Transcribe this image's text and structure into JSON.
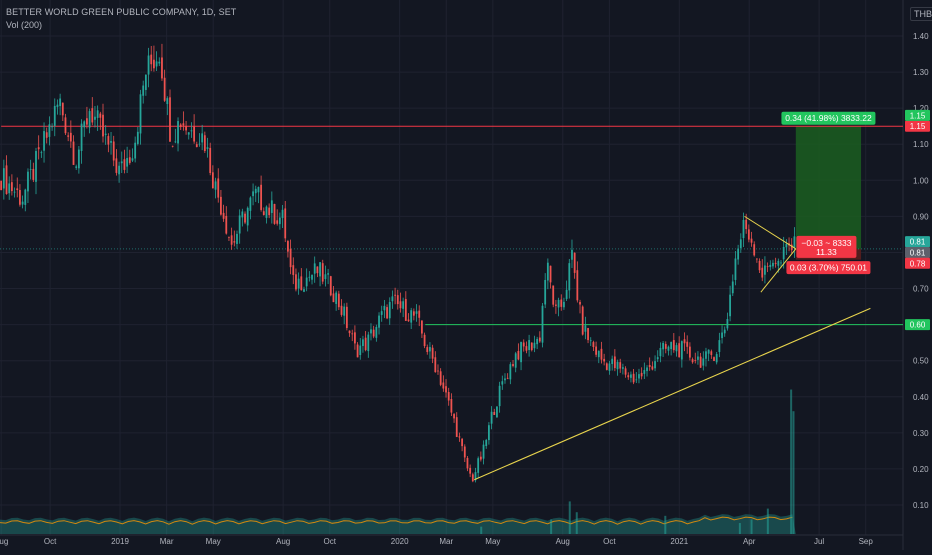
{
  "header": {
    "symbol_title": "BETTER WORLD GREEN PUBLIC COMPANY, 1D, SET",
    "volume_label": "Vol (200)",
    "currency": "THB"
  },
  "colors": {
    "background": "#131722",
    "grid": "#1f2230",
    "up": "#26a69a",
    "down": "#ef5350",
    "resistance": "#f23645",
    "support": "#22c55e",
    "trendline": "#e8d44d",
    "target_zone": "#1b5e20",
    "stop_zone": "#5a1e1e",
    "text": "#b2b5be"
  },
  "chart_data": {
    "type": "candlestick",
    "title": "BETTER WORLD GREEN PUBLIC COMPANY, 1D, SET",
    "ylim": [
      0.04,
      1.45
    ],
    "y_ticks": [
      "1.40",
      "1.30",
      "1.20",
      "1.10",
      "1.00",
      "0.90",
      "0.80",
      "0.70",
      "0.60",
      "0.50",
      "0.40",
      "0.30",
      "0.20",
      "0.10"
    ],
    "x_ticks": [
      "Aug",
      "Oct",
      "2019",
      "Mar",
      "May",
      "Aug",
      "Oct",
      "2020",
      "Mar",
      "May",
      "Aug",
      "Oct",
      "2021",
      "Apr",
      "Jul",
      "Sep"
    ],
    "x_tick_positions": [
      -0.1,
      2,
      5,
      7,
      9,
      12,
      14,
      17,
      19,
      21,
      24,
      26,
      29,
      32,
      35,
      37
    ],
    "x_unit": "months since Sep 2018",
    "x_range": [
      -0.15,
      38.6
    ],
    "price_path": [
      [
        -0.1,
        1.01
      ],
      [
        0.8,
        0.95
      ],
      [
        1.5,
        1.06
      ],
      [
        2.4,
        1.22
      ],
      [
        3.1,
        1.06
      ],
      [
        3.7,
        1.2
      ],
      [
        4.3,
        1.12
      ],
      [
        5.0,
        1.02
      ],
      [
        5.6,
        1.1
      ],
      [
        6.1,
        1.3
      ],
      [
        6.7,
        1.36
      ],
      [
        7.2,
        1.12
      ],
      [
        7.6,
        1.17
      ],
      [
        8.0,
        1.14
      ],
      [
        8.6,
        1.12
      ],
      [
        9.1,
        0.98
      ],
      [
        9.4,
        0.92
      ],
      [
        9.8,
        0.82
      ],
      [
        10.3,
        0.9
      ],
      [
        10.8,
        0.96
      ],
      [
        11.4,
        0.92
      ],
      [
        12.0,
        0.89
      ],
      [
        12.4,
        0.71
      ],
      [
        13.0,
        0.73
      ],
      [
        13.5,
        0.75
      ],
      [
        14.1,
        0.7
      ],
      [
        14.6,
        0.63
      ],
      [
        15.1,
        0.53
      ],
      [
        15.6,
        0.55
      ],
      [
        16.2,
        0.62
      ],
      [
        16.7,
        0.66
      ],
      [
        17.2,
        0.64
      ],
      [
        17.7,
        0.62
      ],
      [
        18.2,
        0.53
      ],
      [
        18.6,
        0.48
      ],
      [
        19.0,
        0.4
      ],
      [
        19.4,
        0.32
      ],
      [
        19.8,
        0.22
      ],
      [
        20.1,
        0.17
      ],
      [
        20.6,
        0.25
      ],
      [
        21.0,
        0.36
      ],
      [
        21.5,
        0.45
      ],
      [
        22.0,
        0.52
      ],
      [
        22.5,
        0.54
      ],
      [
        23.0,
        0.56
      ],
      [
        23.3,
        0.77
      ],
      [
        23.7,
        0.63
      ],
      [
        24.0,
        0.66
      ],
      [
        24.4,
        0.79
      ],
      [
        24.8,
        0.6
      ],
      [
        25.2,
        0.55
      ],
      [
        25.7,
        0.5
      ],
      [
        26.1,
        0.49
      ],
      [
        26.6,
        0.47
      ],
      [
        27.1,
        0.45
      ],
      [
        27.6,
        0.47
      ],
      [
        28.1,
        0.52
      ],
      [
        28.7,
        0.54
      ],
      [
        29.1,
        0.53
      ],
      [
        29.6,
        0.51
      ],
      [
        30.1,
        0.5
      ],
      [
        30.6,
        0.53
      ],
      [
        31.0,
        0.6
      ],
      [
        31.4,
        0.78
      ],
      [
        31.8,
        0.88
      ],
      [
        32.2,
        0.82
      ],
      [
        32.6,
        0.73
      ],
      [
        33.0,
        0.79
      ],
      [
        33.3,
        0.76
      ],
      [
        33.6,
        0.81
      ],
      [
        33.8,
        0.82
      ],
      [
        34.0,
        0.81
      ]
    ],
    "volume_spikes": [
      [
        20.5,
        0.04
      ],
      [
        23.5,
        0.06
      ],
      [
        24.3,
        0.11
      ],
      [
        24.6,
        0.08
      ],
      [
        28.4,
        0.07
      ],
      [
        31.6,
        0.05
      ],
      [
        32.1,
        0.06
      ],
      [
        32.8,
        0.09
      ],
      [
        33.8,
        0.42
      ],
      [
        33.9,
        0.36
      ]
    ],
    "resistance_line": {
      "price": 1.15,
      "label": "1.15",
      "from_x": -0.1,
      "to_x": 38.6
    },
    "support_line": {
      "price": 0.6,
      "label": "0.60",
      "from_x": 18.1,
      "to_x": 38.6
    },
    "trendline": {
      "from": [
        20.2,
        0.17
      ],
      "to": [
        37.2,
        0.645
      ]
    },
    "triangle": {
      "upper": [
        [
          31.8,
          0.9
        ],
        [
          34.0,
          0.81
        ]
      ],
      "lower": [
        [
          32.5,
          0.69
        ],
        [
          34.0,
          0.81
        ]
      ]
    },
    "position": {
      "entry": 0.81,
      "target": 1.15,
      "stop": 0.78,
      "from_x": 34.0,
      "to_x": 36.8,
      "target_label": "0.34 (41.98%) 3833.22",
      "stop_label": "0.03 (3.70%) 750.01",
      "ratio_label_line1": "−0.03 ~ 8333",
      "ratio_label_line2": "11.33"
    },
    "price_axis_badges": [
      {
        "text": "1.15",
        "price": 1.15,
        "color": "#f23645"
      },
      {
        "text": "1.15",
        "price": 1.18,
        "color": "#22c55e"
      },
      {
        "text": "0.81",
        "price": 0.83,
        "color": "#26a69a"
      },
      {
        "text": "0.81",
        "price": 0.8,
        "color": "#5d606b"
      },
      {
        "text": "0.78",
        "price": 0.77,
        "color": "#f23645"
      },
      {
        "text": "0.60",
        "price": 0.6,
        "color": "#22c55e"
      }
    ]
  }
}
